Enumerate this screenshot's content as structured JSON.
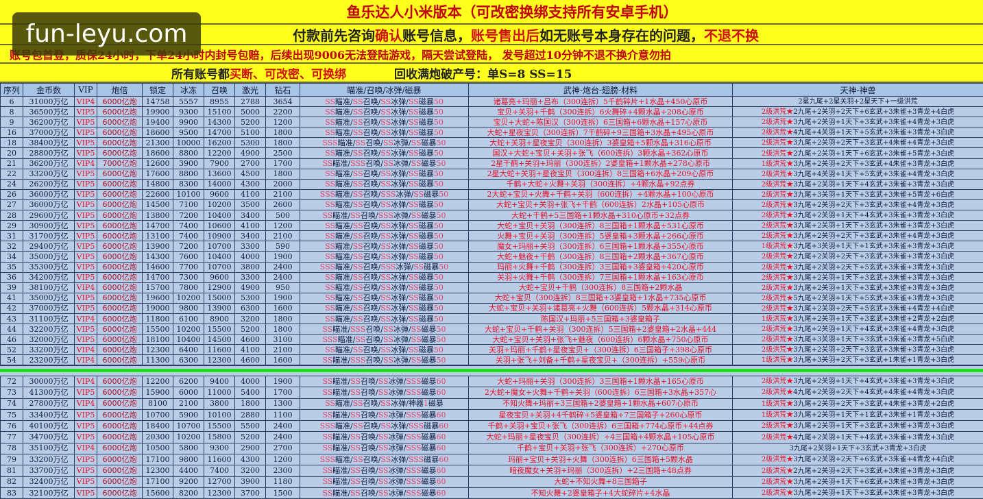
{
  "banners": {
    "line1": "鱼乐达人小米版本（可改密换绑支持所有安卓手机）",
    "line2a": "付款前先咨询",
    "line2b": "确认",
    "line2c": "账号信息，",
    "line2d": "账号售出后",
    "line2e": "如无账号本身存在的问题，",
    "line2f": "不退不换",
    "line3": "账号包首登，质保24小时，下单24小时内封号包赔，后续出现9006无法登陆游戏，隔天尝试登陆， 发号超过10分钟不退不换介意勿拍",
    "line4a": "所有账号都",
    "line4b": "买断、可改密、可换绑",
    "line4c": "回收满炮破产号：单S=8   SS=15"
  },
  "watermark": "fun-leyu.com",
  "colors": {
    "banner": "#ffff1e",
    "table": "#b9cde6",
    "header": "#a8c4e4",
    "accent_red": "#e8102a",
    "divider_green": "#20e020"
  },
  "headers": [
    "序列",
    "金币数",
    "VIP",
    "炮倍",
    "锁定",
    "冰冻",
    "召唤",
    "激光",
    "钻石",
    "瞄准/召唤/冰弹/磁暴",
    "武神-炮台-翅膀-材料",
    "天神-神兽"
  ],
  "rows_top": [
    [
      "6",
      "31000万亿",
      "VIP4",
      "6000亿炮",
      "14758",
      "5557",
      "8955",
      "2788",
      "3654",
      "SS瞄准/SS召唤/SS冰弹/SS磁暴50",
      "诸葛亮+玛丽+吕布（300连拆）5千鹤碎片+1水晶+450心原币",
      "2星九尾+2星关羽+2星天下+一级洪荒"
    ],
    [
      "8",
      "36500万亿",
      "VIP5",
      "6000亿炮",
      "19900",
      "9300",
      "15100",
      "5000",
      "2200",
      "SS瞄准/SS召唤/SS冰弹/SS磁暴50",
      "宝贝+关羽+千鹤（300连拆）6火舞碎+4颗水晶+208心原币",
      "2级洪荒★2九尾+2关羽+2天下+6玄武+3朱雀+3青龙+4白虎"
    ],
    [
      "9",
      "36200万亿",
      "VIP5",
      "6000亿炮",
      "19400",
      "9900",
      "14300",
      "5200",
      "1200",
      "SS瞄准/SS召唤/SS冰弹/SS磁暴50",
      "宝贝+大蛇+陈国汉（300连拆）6三国箱+6颗水晶+157心原币",
      "2级洪荒★3九尾+2关羽+1天下+3玄武+3朱雀+4青龙+3白虎"
    ],
    [
      "16",
      "37000万亿",
      "VIP5",
      "6000亿炮",
      "18600",
      "9500",
      "14700",
      "5100",
      "1800",
      "SS瞄准/SS召唤/SS冰弹/SS磁暴50",
      "大蛇+星夜宝贝（300连拆）7千鹤碎+9三国箱+3水晶+495心原币",
      "2级洪荒★4九尾+4关羽+1天下+5玄武+3朱雀+3青龙+3白虎"
    ],
    [
      "18",
      "38400万亿",
      "VIP5",
      "6000亿炮",
      "21300",
      "10000",
      "16200",
      "5300",
      "1800",
      "SSS瞄准/SS召唤/SS冰弹/SS磁暴50",
      "大蛇+关羽+星夜宝贝（300连拆）3婆皇箱+5颗水晶+316心原币",
      "2级洪荒★3九尾+2关羽+2天下+3玄武+4朱雀+4青龙+3白虎"
    ],
    [
      "20",
      "28800万亿",
      "VIP5",
      "6000亿炮",
      "18600",
      "8800",
      "12200",
      "4900",
      "2500",
      "SS瞄准/SS召唤/SS冰弹/SS磁暴50",
      "国汉+大蛇+宝贝+关羽+张飞（600连拆）3颗水晶+362心原币",
      "2级洪荒★2九尾+2关羽+1天下+6玄武+3朱雀+5青龙+3白虎"
    ],
    [
      "21",
      "36200万亿",
      "VIP4",
      "7000亿炮",
      "12600",
      "3900",
      "7900",
      "2700",
      "1700",
      "SS瞄准/SSS召唤/SS冰弹/SS磁暴50",
      "2星千鹤+关羽+玛丽（300连拆）2婆皇箱+1颗水晶+278心原币",
      "1级洪荒★3九尾+2关羽+2天下+3玄武+4朱雀+3青龙+3白虎"
    ],
    [
      "22",
      "33200万亿",
      "VIP5",
      "6000亿炮",
      "17600",
      "8800",
      "13600",
      "4500",
      "1800",
      "SS瞄准/SS召唤/SS冰弹/SS磁暴50",
      "2星大蛇+关羽+星夜宝贝（300连拆）8三国箱+6水晶+209心原币",
      "2级洪荒★3九尾+4关羽+1天下+5玄武+3朱雀+4青龙+3白虎"
    ],
    [
      "24",
      "26200万亿",
      "VIP5",
      "6000亿炮",
      "14800",
      "8300",
      "14000",
      "4300",
      "2000",
      "SS瞄准/SS召唤/SS冰弹/SS磁暴50",
      "千鹤+大蛇+火舞+关羽（300连拆）+4颗水晶+92点券",
      "2级洪荒★3九尾+2关羽+1天下+4玄武+3朱雀+3青龙+3白虎"
    ],
    [
      "26",
      "36000万亿",
      "VIP5",
      "6000亿炮",
      "22600",
      "10100",
      "9600",
      "4100",
      "2100",
      "SSS瞄准/SS召唤/SSS冰弹/SS磁暴50",
      "2大蛇+宝贝+火舞+千鹤+关羽（600连拆）+4颗水晶+100心原币",
      "2级洪荒★3九尾+3关羽+1天下+3玄武+3朱雀+5青龙+6白虎"
    ],
    [
      "27",
      "36000万亿",
      "VIP5",
      "6000亿炮",
      "14500",
      "7100",
      "10200",
      "3500",
      "2600",
      "SS瞄准/SS召唤/SS冰弹/SS磁暴50",
      "大蛇+宝贝+关羽+张飞+千鹤（600连拆）2水晶+105心原币",
      "2级洪荒★3九尾+2关羽+2天下+3玄武+3朱雀+4青龙+3白虎"
    ],
    [
      "28",
      "29600万亿",
      "VIP5",
      "6000亿炮",
      "13800",
      "7200",
      "10400",
      "3400",
      "500",
      "SS瞄准/SS召唤/SSS冰弹/SS磁暴50",
      "大蛇+千鹤+5三国箱+1颗水晶+310心原币+32点券",
      "2级洪荒★3九尾+2关羽+1天下+4玄武+3朱雀+3青龙+3白虎"
    ],
    [
      "29",
      "30900万亿",
      "VIP5",
      "6000亿炮",
      "14700",
      "7400",
      "10600",
      "4100",
      "1200",
      "SS瞄准/SS召唤/SS冰弹/SS磁暴50",
      "大蛇+宝贝+关羽（300连拆）8三国箱+1颗水晶+531心原币",
      "2级洪荒★3九尾+2关羽+1天下+3玄武+3朱雀+3青龙+3白虎"
    ],
    [
      "31",
      "31700万亿",
      "VIP5",
      "6000亿炮",
      "13100",
      "7400",
      "10900",
      "3400",
      "2100",
      "SS瞄准/SS召唤/SS冰弹/SS磁暴50",
      "火舞+宝贝+关羽（300连拆）5婆皇箱+3颗水晶+266心原币",
      "2级洪荒★3九尾+2关羽+2天下+3玄武+3朱雀+4青龙+3白虎"
    ],
    [
      "32",
      "29400万亿",
      "VIP5",
      "6000亿炮",
      "13900",
      "7200",
      "10700",
      "3300",
      "590",
      "SS瞄准/SS召唤/SS冰弹/SS磁暴50",
      "魔女+玛丽+关羽（300连拆）6三国箱+1颗水晶+355心原币",
      "1级洪荒★3九尾+3关羽+1天下+1玄武+3朱雀+3青龙+3白虎"
    ],
    [
      "34",
      "35000万亿",
      "VIP5",
      "6000亿炮",
      "14300",
      "7600",
      "10400",
      "4000",
      "1900",
      "SS瞄准/SS召唤/SS冰弹/SS磁暴50",
      "大蛇+魅夜+千鹤（300连拆）8三国箱+2颗水晶+367心原币",
      "2级洪荒★2九尾+2关羽+2天下+3玄武+3朱雀+3青龙+3白虎"
    ],
    [
      "35",
      "35300万亿",
      "VIP5",
      "6000亿炮",
      "14600",
      "7700",
      "10700",
      "3800",
      "2400",
      "SSS瞄准/SS召唤/SSS冰弹/SS磁暴50",
      "玛丽+火舞+千鹤（300连拆）3三国箱+3婆皇箱+420心原币",
      "2级洪荒★3九尾+2关羽+2天下+5玄武+3朱雀+3青龙+3白虎"
    ],
    [
      "36",
      "34200万亿",
      "VIP5",
      "6000亿炮",
      "14700",
      "7300",
      "9600",
      "3300",
      "2400",
      "SS瞄准/SS召唤/SS冰弹/SS磁暴50",
      "关羽+火舞+千鹤（300连拆）7三国箱+1颗水晶+163心原币",
      "2级洪荒★3九尾+2关羽+1天下+3玄武+3朱雀+3青龙+3白虎"
    ],
    [
      "39",
      "38100万亿",
      "VIP4",
      "6000亿炮",
      "15700",
      "7800",
      "12900",
      "4900",
      "950",
      "SS瞄准/SS召唤/SS冰弹/SS磁暴50",
      "大蛇+宝贝+千鹤（300连拆）8三国箱+2颗水晶",
      "2级洪荒★3九尾+2关羽+1天下+3玄武+3朱雀+3青龙+3白虎"
    ],
    [
      "41",
      "35000万亿",
      "VIP5",
      "6000亿炮",
      "19600",
      "10200",
      "15000",
      "5300",
      "1900",
      "SS瞄准/SS召唤/SS冰弹/SS磁暴50",
      "大蛇+宝贝（300连拆）8三国箱+3婆皇箱+1水晶+735心原币",
      "2级洪荒★5九尾+2关羽+1天下+5玄武+3朱雀+3青龙+3白虎"
    ],
    [
      "42",
      "37000万亿",
      "VIP5",
      "6000亿炮",
      "19000",
      "9800",
      "13900",
      "6300",
      "1600",
      "SS瞄准/SS召唤/SS冰弹/SS磁暴50",
      "大蛇+宝贝+关羽+诸葛亮+火舞（600连拆）5颗水晶+314心原币",
      "2级洪荒★3九尾+2关羽+2天下+5玄武+3朱雀+4青龙+4白虎"
    ],
    [
      "43",
      "31100万亿",
      "VIP4",
      "6000亿炮",
      "11800",
      "6100",
      "8900",
      "3200",
      "1800",
      "SS瞄准/SS召唤/SS冰弹/SS磁暴50",
      "陈国汉+玛丽+5三国箱+3婆皇箱子",
      "1级洪荒★3九尾+2关羽+1天下+3玄武+3朱雀+2青龙+2白虎"
    ],
    [
      "44",
      "32200万亿",
      "VIP5",
      "6000亿炮",
      "15500",
      "10200",
      "15500",
      "5200",
      "1800",
      "SS瞄准/SSS召唤/SS冰弹/SS磁暴50",
      "大蛇+宝贝+千鹤+关羽（300连拆）5三国箱+2婆皇箱+2水晶+444",
      "2级洪荒★3九尾+2关羽+1天下+4玄武+3朱雀+4青龙+3白虎"
    ],
    [
      "46",
      "32000万亿",
      "VIP5",
      "6000亿炮",
      "18100",
      "10400",
      "14500",
      "4600",
      "3100",
      "SSS瞄准/SS召唤/SS冰弹/SS磁暴50",
      "大蛇+宝贝+关羽+张飞+魅夜（600连拆）6颗水晶+750心原币",
      "2级洪荒★3九尾+3关羽+1天下+3玄武+3朱雀+3青龙+5白虎"
    ],
    [
      "52",
      "33200万亿",
      "VIP4",
      "6000亿炮",
      "12300",
      "6400",
      "11600",
      "4100",
      "2100",
      "SS瞄准/SS召唤/SS冰弹/SS磁暴50",
      "关羽+玛丽+千鹤+星夜宝贝+（300连拆）6三国箱子+398心原币",
      "2级洪荒★3九尾+2关羽+2天下+3玄武+3朱雀+3青龙+3白虎"
    ],
    [
      "54",
      "23200万亿",
      "VIP4",
      "6000亿炮",
      "11300",
      "6300",
      "12300",
      "4600",
      "1600",
      "SS瞄准/SSS召唤/SS冰弹/SS磁暴50",
      "关羽+张飞+刘备+千鹤+星夜宝贝+（300连拆）+559心原币",
      "1级洪荒★3九尾+3关羽+2天下+3玄武+1朱雀+1青龙+3白虎"
    ]
  ],
  "rows_bottom": [
    [
      "72",
      "30000万亿",
      "VIP4",
      "6000亿炮",
      "12200",
      "6200",
      "9400",
      "4000",
      "1900",
      "SS瞄准/SS召唤/SS冰弹/SSS磁暴60",
      "大蛇+玛丽+关羽（300连拆）3三国箱+1颗水晶+165心原币",
      "2级洪荒★3九尾+2关羽+1天下+4玄武+3朱雀+3青龙+3白虎"
    ],
    [
      "73",
      "41300万亿",
      "VIP5",
      "6000亿炮",
      "15900",
      "6000",
      "11000",
      "5400",
      "1700",
      "SS瞄准/SS召唤/SS冰弹/SSS磁暴60",
      "2大蛇+魔女+火舞+千鹤+关羽（600连拆）6三国箱+3水晶+357心",
      "2级洪荒★4九尾+2关羽+2天下+4玄武+4朱雀+4青龙+3白虎"
    ],
    [
      "74",
      "27800万亿",
      "VIP4",
      "6000亿炮",
      "8100",
      "2100",
      "3800",
      "1800",
      "1300",
      "SS瞄准/SS召唤/SS冰弹/神器1磁暴",
      "不知火舞+玛丽+3三国箱+2婆皇箱+1颗水晶+607心原币",
      "1级洪荒★3九尾+2关羽+2天下+3玄武+4朱雀+3青龙+2白虎"
    ],
    [
      "75",
      "33400万亿",
      "VIP5",
      "6000亿炮",
      "10700",
      "5900",
      "10100",
      "2880",
      "1100",
      "SS瞄准/SS召唤/SS冰弹/SSS磁暴60",
      "星夜宝贝+关羽+4千鹤碎+5婆皇箱+7三国箱子+260心原币",
      "1级洪荒★3九尾+2关羽+1天下+1玄武+3朱雀+1青龙+3白虎"
    ],
    [
      "76",
      "40100万亿",
      "VIP5",
      "6000亿炮",
      "18400",
      "10700",
      "15500",
      "5500",
      "2400",
      "SSS瞄准/SS召唤/SS冰弹/SSS磁暴60",
      "千鹤+关羽+宝贝+张飞（300连拆）6三国箱+774心原币+44点券",
      "2级洪荒★3九尾+2关羽+1天下+3玄武+3朱雀+3青龙+3白虎"
    ],
    [
      "77",
      "34700万亿",
      "VIP5",
      "6000亿炮",
      "20300",
      "10200",
      "15800",
      "5200",
      "2400",
      "SS瞄准/SS召唤/SS冰弹/SSS磁暴60",
      "大蛇+玛丽+星夜宝贝（300连拆）+4三国箱+4颗水晶+105心原币",
      "2级洪荒★4九尾+2关羽+1天下+4玄武+3朱雀+3青龙+3白虎"
    ],
    [
      "78",
      "35100万亿",
      "VIP4",
      "6000亿炮",
      "10500",
      "5800",
      "9300",
      "2900",
      "2700",
      "SS瞄准/SS召唤/SS冰弹/SSS磁暴60",
      "千鹤+宝贝+关羽+张飞（300连拆）+270心原币",
      "3九尾+2关羽+1天下+3玄武+3青龙+3白虎"
    ],
    [
      "79",
      "33200万亿",
      "VIP5",
      "6000亿炮",
      "17100",
      "9800",
      "11600",
      "4300",
      "1200",
      "SSS瞄准/SS召唤/SS冰弹/SSS磁暴60",
      "玛丽+宝贝+关羽+火舞（300连拆）6三国箱+5颗水晶",
      "2级洪荒★3九尾+2关羽+2天下+6玄武+3朱雀+4青龙+4白虎"
    ],
    [
      "81",
      "33700万亿",
      "VIP5",
      "6000亿炮",
      "12300",
      "4400",
      "7400",
      "3200",
      "2300",
      "SS瞄准/SS召唤/SS冰弹/SSS磁暴60",
      "暗夜魔女+关羽+玛丽（300连拆）+2三国箱+48点券",
      "2级洪荒★2九尾+2关羽+2天下+3玄武+3朱雀+3青龙+3白虎"
    ],
    [
      "82",
      "32400万亿",
      "VIP5",
      "6000亿炮",
      "17100",
      "9200",
      "12700",
      "3900",
      "1180",
      "SS瞄准/SS召唤/SS冰弹/SSS磁暴60",
      "大蛇+不知火舞+8三国箱子",
      "2级洪荒★3九尾+2关羽+1天下+6玄武+3朱雀+3青龙+3白虎"
    ],
    [
      "83",
      "32100万亿",
      "VIP5",
      "6000亿炮",
      "15600",
      "8200",
      "12300",
      "3700",
      "1500",
      "SS瞄准/SS召唤/SS冰弹/SSS磁暴60",
      "不知火舞+2婆皇箱子+4大蛇碎片+4水晶",
      "2级洪荒★3九尾+2关羽+1天下+3玄武+3朱雀+3青龙+3白虎"
    ]
  ]
}
